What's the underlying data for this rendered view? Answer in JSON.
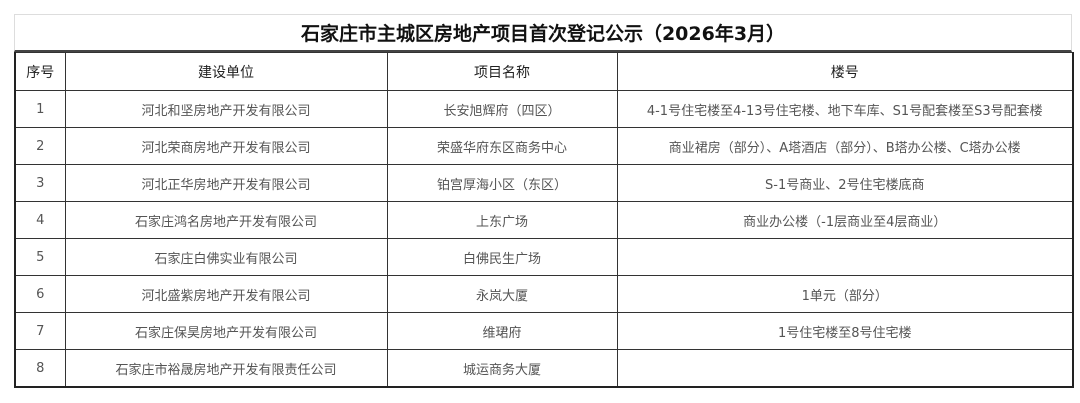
{
  "title": "石家庄市主城区房地产项目首次登记公示（2026年3月）",
  "headers": [
    "序号",
    "建设单位",
    "项目名称",
    "楼号"
  ],
  "rows": [
    {
      "no": "1",
      "developer": "河北和坚房地产开发有限公司",
      "project": "长安旭辉府（四区）",
      "buildings": "4-1号住宅楼至4-13号住宅楼、地下车库、S1号配套楼至S3号配套楼"
    },
    {
      "no": "2",
      "developer": "河北荣商房地产开发有限公司",
      "project": "荣盛华府东区商务中心",
      "buildings": "商业裙房（部分）、A塔酒店（部分）、B塔办公楼、C塔办公楼"
    },
    {
      "no": "3",
      "developer": "河北正华房地产开发有限公司",
      "project": "铂宫厚海小区（东区）",
      "buildings": "S-1号商业、2号住宅楼底商"
    },
    {
      "no": "4",
      "developer": "石家庄鸿名房地产开发有限公司",
      "project": "上东广场",
      "buildings": "商业办公楼（-1层商业至4层商业）"
    },
    {
      "no": "5",
      "developer": "石家庄白佛实业有限公司",
      "project": "白佛民生广场",
      "buildings": ""
    },
    {
      "no": "6",
      "developer": "河北盛紫房地产开发有限公司",
      "project": "永岚大厦",
      "buildings": "1单元（部分）"
    },
    {
      "no": "7",
      "developer": "石家庄保昊房地产开发有限公司",
      "project": "维珺府",
      "buildings": "1号住宅楼至8号住宅楼"
    },
    {
      "no": "8",
      "developer": "石家庄市裕晟房地产开发有限责任公司",
      "project": "城运商务大厦",
      "buildings": ""
    }
  ]
}
